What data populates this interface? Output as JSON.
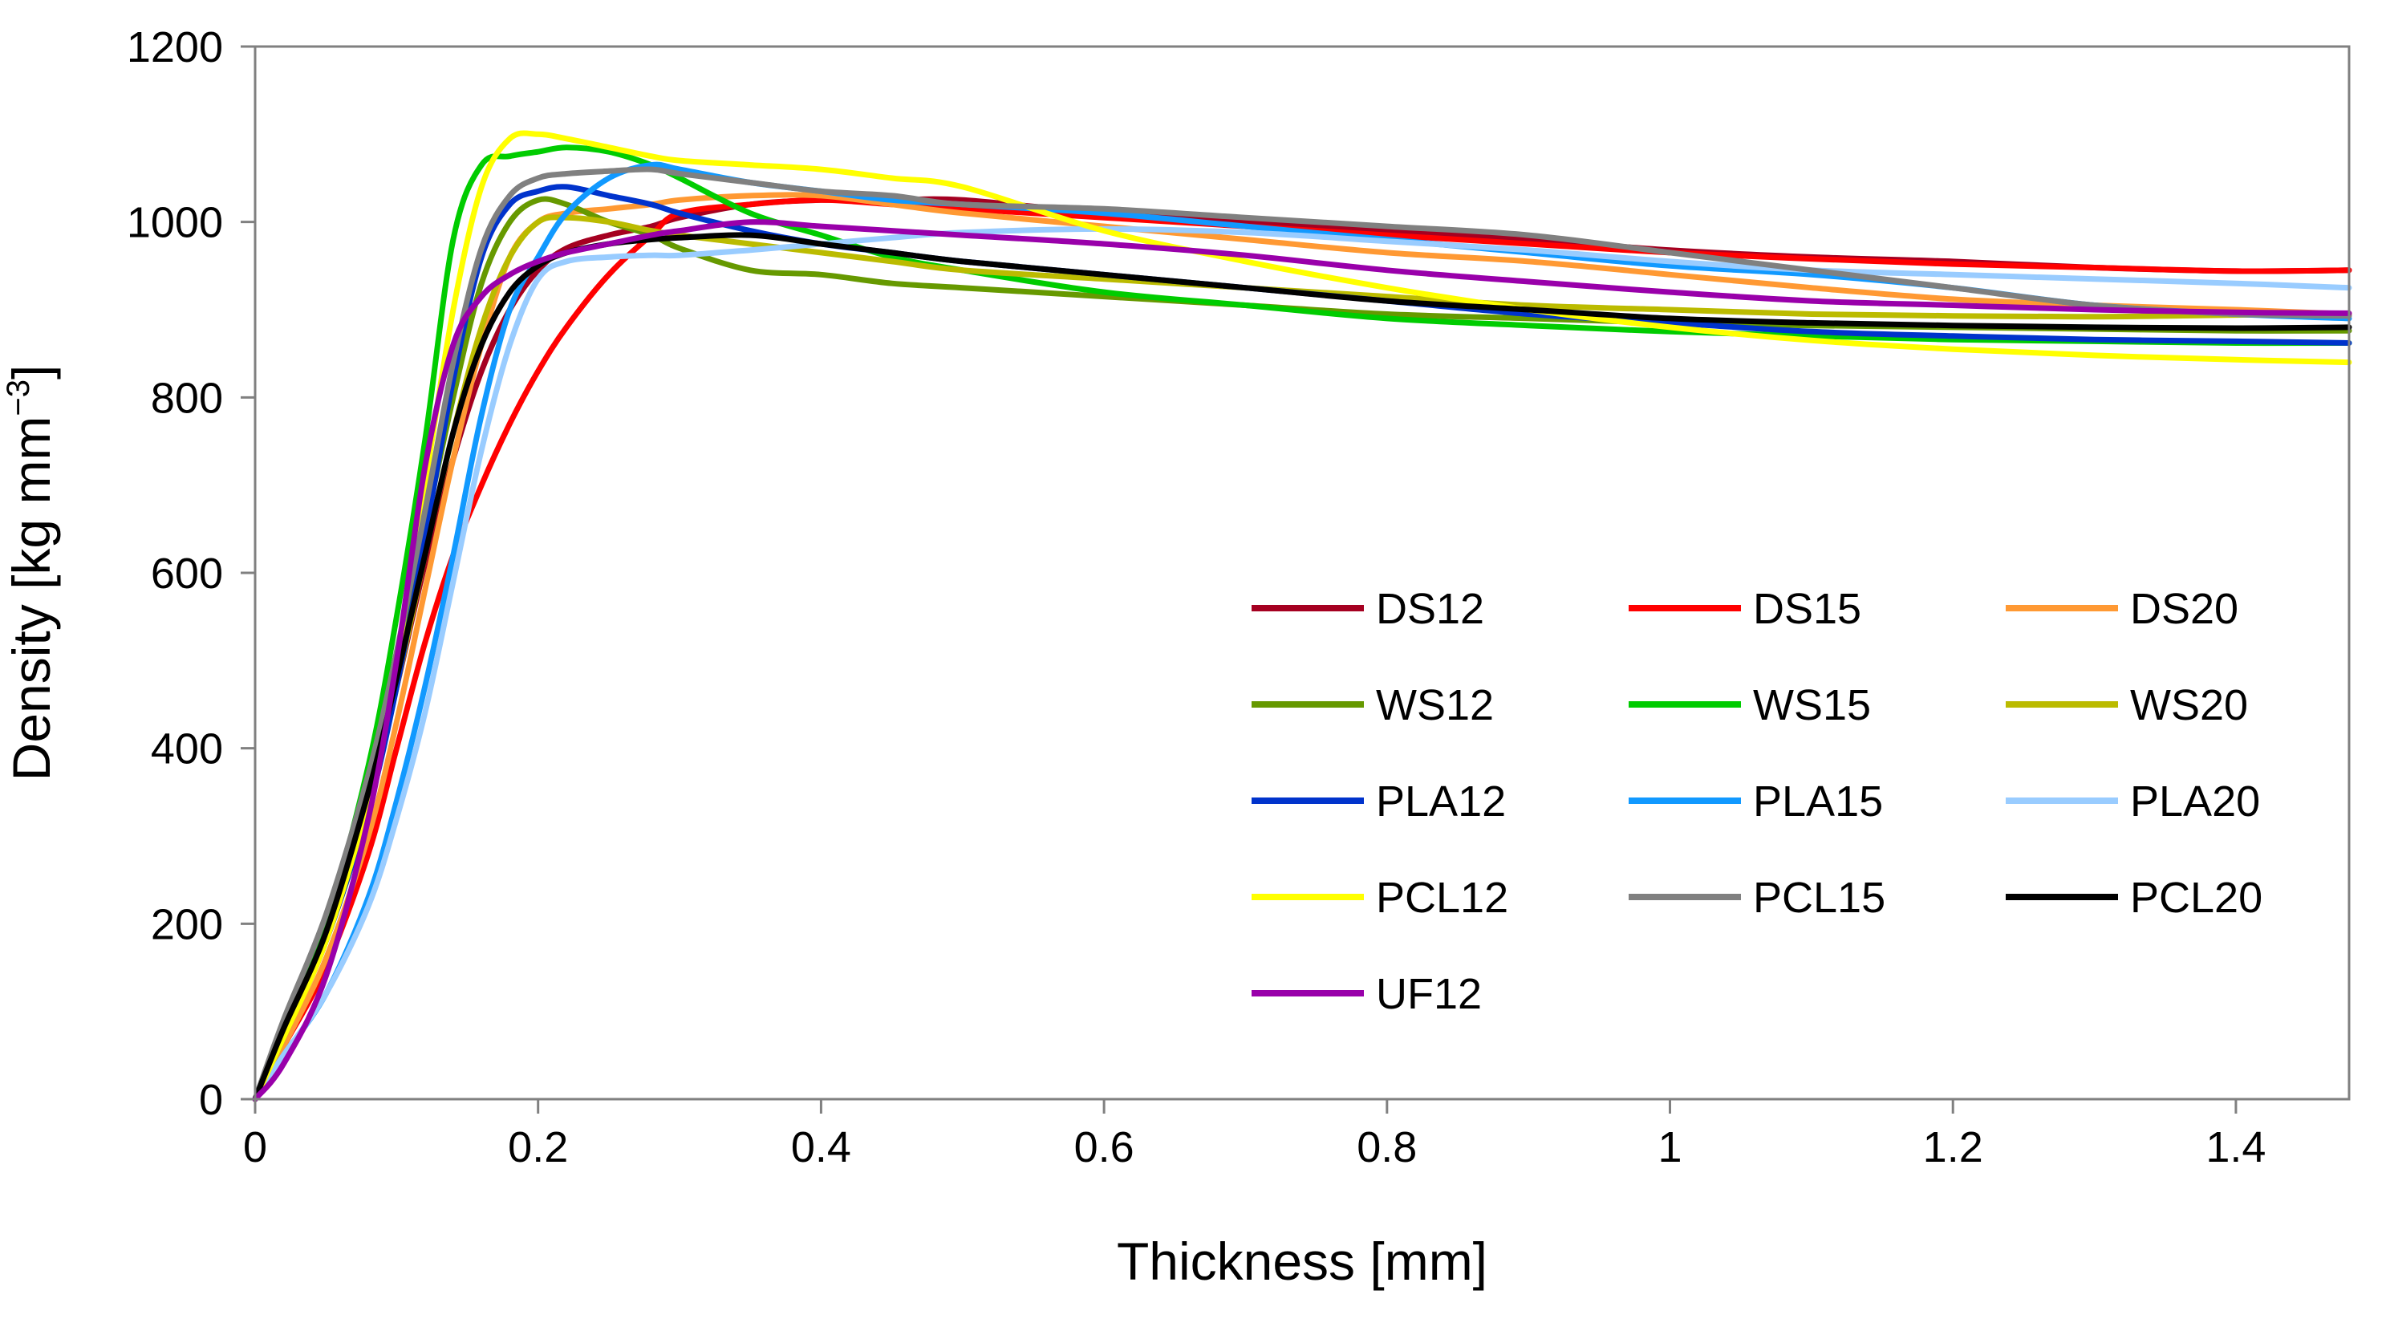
{
  "chart_data": {
    "type": "line",
    "title": "",
    "xlabel": "Thickness [mm]",
    "ylabel_main": "Density [kg mm",
    "ylabel_sup": "−3",
    "ylabel_end": "]",
    "xlim": [
      0,
      1.48
    ],
    "ylim": [
      0,
      1200
    ],
    "x_ticks": [
      0,
      0.2,
      0.4,
      0.6,
      0.8,
      1,
      1.2,
      1.4
    ],
    "x_tick_labels": [
      "0",
      "0.2",
      "0.4",
      "0.6",
      "0.8",
      "1",
      "1.2",
      "1.4"
    ],
    "y_ticks": [
      0,
      200,
      400,
      600,
      800,
      1000,
      1200
    ],
    "y_tick_labels": [
      "0",
      "200",
      "400",
      "600",
      "800",
      "1000",
      "1200"
    ],
    "grid": false,
    "legend_position": "bottom-right",
    "x": [
      0,
      0.02,
      0.05,
      0.08,
      0.1,
      0.12,
      0.14,
      0.16,
      0.18,
      0.2,
      0.22,
      0.25,
      0.28,
      0.3,
      0.35,
      0.4,
      0.45,
      0.5,
      0.6,
      0.7,
      0.8,
      0.9,
      1.0,
      1.1,
      1.2,
      1.3,
      1.4,
      1.48
    ],
    "series": [
      {
        "name": "DS12",
        "color": "#A50021",
        "values": [
          0,
          70,
          180,
          340,
          470,
          610,
          730,
          830,
          900,
          945,
          970,
          985,
          995,
          1005,
          1020,
          1025,
          1025,
          1025,
          1010,
          1000,
          990,
          980,
          968,
          960,
          955,
          948,
          944,
          945
        ]
      },
      {
        "name": "DS15",
        "color": "#FF0000",
        "values": [
          0,
          60,
          150,
          280,
          400,
          520,
          620,
          700,
          770,
          830,
          880,
          940,
          985,
          1010,
          1020,
          1025,
          1020,
          1015,
          1005,
          995,
          985,
          975,
          965,
          958,
          952,
          948,
          944,
          945
        ]
      },
      {
        "name": "DS20",
        "color": "#FF9933",
        "values": [
          0,
          60,
          160,
          300,
          430,
          580,
          730,
          860,
          960,
          1000,
          1010,
          1015,
          1020,
          1025,
          1030,
          1030,
          1020,
          1010,
          995,
          980,
          965,
          955,
          940,
          925,
          912,
          905,
          900,
          895
        ]
      },
      {
        "name": "WS12",
        "color": "#669900",
        "values": [
          0,
          80,
          200,
          360,
          500,
          650,
          800,
          930,
          1000,
          1025,
          1020,
          1000,
          985,
          970,
          945,
          940,
          930,
          925,
          915,
          905,
          895,
          890,
          885,
          882,
          880,
          878,
          876,
          876
        ]
      },
      {
        "name": "WS15",
        "color": "#00CC00",
        "values": [
          0,
          80,
          200,
          380,
          550,
          750,
          980,
          1065,
          1075,
          1080,
          1085,
          1080,
          1065,
          1050,
          1010,
          985,
          960,
          945,
          920,
          905,
          890,
          882,
          875,
          870,
          866,
          864,
          862,
          862
        ]
      },
      {
        "name": "WS20",
        "color": "#BBBB00",
        "values": [
          0,
          70,
          180,
          330,
          470,
          620,
          760,
          880,
          960,
          1000,
          1005,
          1000,
          990,
          985,
          975,
          965,
          955,
          945,
          935,
          925,
          915,
          905,
          900,
          895,
          893,
          892,
          894,
          895
        ]
      },
      {
        "name": "PLA12",
        "color": "#0033CC",
        "values": [
          0,
          70,
          180,
          330,
          470,
          640,
          820,
          960,
          1020,
          1035,
          1040,
          1030,
          1020,
          1010,
          990,
          975,
          965,
          955,
          940,
          925,
          910,
          895,
          885,
          875,
          870,
          866,
          864,
          862
        ]
      },
      {
        "name": "PLA15",
        "color": "#1199FF",
        "values": [
          0,
          50,
          120,
          230,
          340,
          470,
          620,
          780,
          900,
          960,
          1010,
          1050,
          1065,
          1060,
          1045,
          1035,
          1025,
          1020,
          1010,
          995,
          980,
          965,
          950,
          940,
          925,
          905,
          895,
          890
        ]
      },
      {
        "name": "PLA20",
        "color": "#99CCFF",
        "values": [
          0,
          50,
          120,
          220,
          320,
          440,
          590,
          740,
          860,
          935,
          955,
          960,
          962,
          962,
          968,
          975,
          982,
          988,
          992,
          988,
          978,
          968,
          955,
          945,
          940,
          935,
          930,
          925
        ]
      },
      {
        "name": "PCL12",
        "color": "#FFFF00",
        "values": [
          0,
          70,
          180,
          340,
          500,
          700,
          900,
          1040,
          1095,
          1100,
          1095,
          1085,
          1075,
          1070,
          1065,
          1060,
          1050,
          1040,
          990,
          955,
          925,
          900,
          880,
          865,
          855,
          848,
          843,
          840
        ]
      },
      {
        "name": "PCL15",
        "color": "#808080",
        "values": [
          0,
          90,
          210,
          370,
          510,
          670,
          840,
          970,
          1030,
          1050,
          1055,
          1058,
          1060,
          1055,
          1045,
          1035,
          1030,
          1020,
          1015,
          1005,
          995,
          985,
          965,
          945,
          925,
          905,
          895,
          893
        ]
      },
      {
        "name": "PCL20",
        "color": "#000000",
        "values": [
          0,
          80,
          190,
          350,
          480,
          620,
          760,
          860,
          920,
          950,
          965,
          975,
          980,
          982,
          985,
          975,
          965,
          955,
          940,
          925,
          910,
          900,
          890,
          885,
          882,
          880,
          879,
          880
        ]
      },
      {
        "name": "UF12",
        "color": "#9900AA",
        "values": [
          0,
          40,
          140,
          320,
          500,
          720,
          860,
          915,
          940,
          955,
          965,
          975,
          985,
          990,
          1000,
          995,
          990,
          985,
          975,
          962,
          945,
          932,
          920,
          910,
          905,
          900,
          897,
          896
        ]
      }
    ]
  }
}
